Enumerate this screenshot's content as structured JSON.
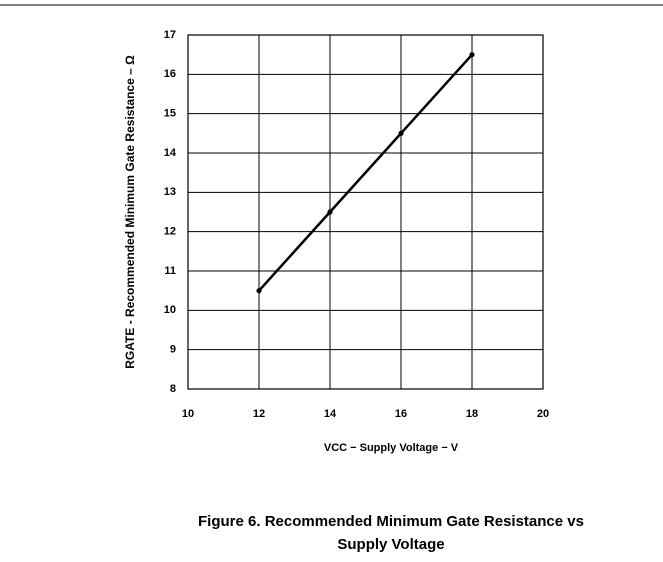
{
  "chart_data": {
    "type": "line",
    "title": "Figure 6. Recommended Minimum Gate Resistance vs Supply Voltage",
    "x_label": "VCC − Supply Voltage − V",
    "y_label": "RGATE - Recommended Minimum Gate Resistance – Ω",
    "x": [
      12,
      14,
      16,
      18
    ],
    "series": [
      {
        "color": "#000000",
        "values": [
          10.5,
          12.5,
          14.5,
          16.5
        ]
      }
    ],
    "xlim": [
      10,
      20
    ],
    "xticks": [
      10,
      12,
      14,
      16,
      18,
      20
    ],
    "ylim": [
      8,
      17
    ],
    "yticks": [
      8,
      9,
      10,
      11,
      12,
      13,
      14,
      15,
      16,
      17
    ],
    "grid": true
  }
}
